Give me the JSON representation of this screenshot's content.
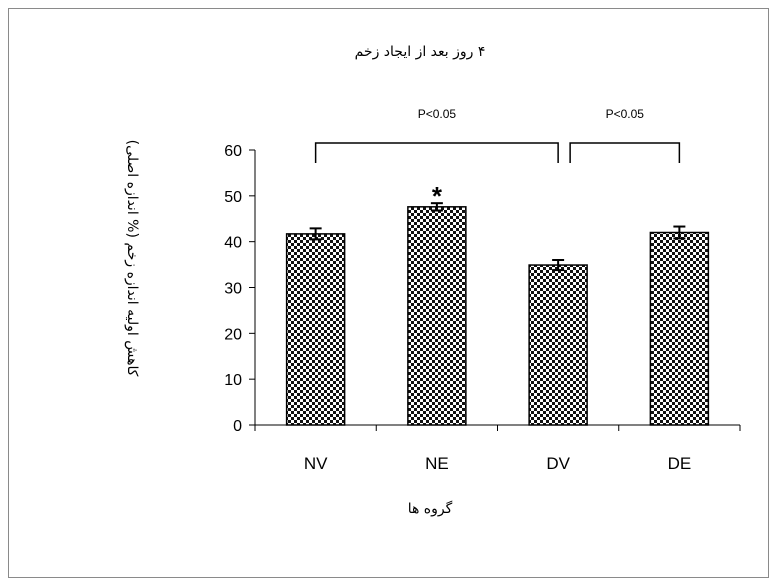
{
  "chart_data": {
    "type": "bar",
    "title": "۴ روز بعد از ایجاد زخم",
    "xlabel": "گروه ها",
    "ylabel": "کاهش اولیه اندازه زخم (% اندازه اصلی)",
    "categories": [
      "NV",
      "NE",
      "DV",
      "DE"
    ],
    "values": [
      41.7,
      47.6,
      34.9,
      42.0
    ],
    "errors": [
      1.2,
      0.8,
      1.1,
      1.3
    ],
    "ylim": [
      0,
      60
    ],
    "yticks": [
      0,
      10,
      20,
      30,
      40,
      50,
      60
    ],
    "grid": false,
    "bar_fill": "checkerboard",
    "annotations": {
      "star": "*",
      "star_category": "NE",
      "brackets": [
        {
          "from": "NV",
          "to": "DV",
          "label": "P<0.05"
        },
        {
          "from": "DV",
          "to": "DE",
          "label": "P<0.05"
        }
      ]
    }
  },
  "colors": {
    "bar_dark": "#111111",
    "bar_light": "#ffffff",
    "axis": "#000000",
    "frame": "#8a8a8a"
  }
}
